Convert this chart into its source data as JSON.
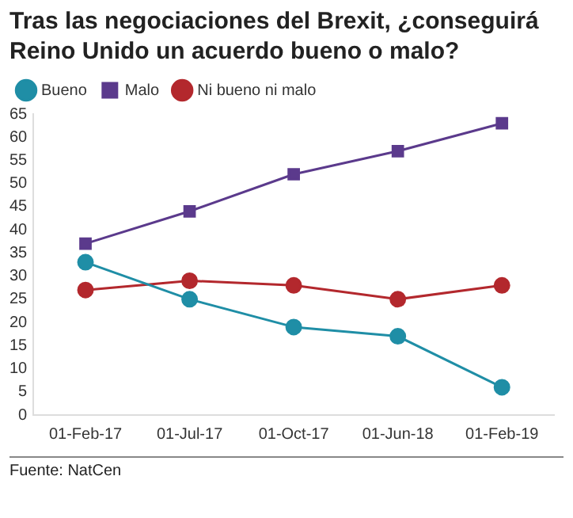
{
  "chart_data": {
    "type": "line",
    "title": "Tras las negociaciones del Brexit, ¿conseguirá Reino Unido un acuerdo bueno o malo?",
    "categories": [
      "01-Feb-17",
      "01-Jul-17",
      "01-Oct-17",
      "01-Jun-18",
      "01-Feb-19"
    ],
    "series": [
      {
        "name": "Bueno",
        "color": "#1f8ea6",
        "marker": "circle",
        "values": [
          33,
          25,
          19,
          17,
          6
        ]
      },
      {
        "name": "Malo",
        "color": "#5b3a8c",
        "marker": "square",
        "values": [
          37,
          44,
          52,
          57,
          63
        ]
      },
      {
        "name": "Ni bueno ni malo",
        "color": "#b3282d",
        "marker": "circle",
        "values": [
          27,
          29,
          28,
          25,
          28
        ]
      }
    ],
    "ylim": [
      0,
      65
    ],
    "yticks": [
      0,
      5,
      10,
      15,
      20,
      25,
      30,
      35,
      40,
      45,
      50,
      55,
      60,
      65
    ],
    "grid": false,
    "legend": "top left",
    "annotations": [
      "Fuente: NatCen"
    ]
  }
}
